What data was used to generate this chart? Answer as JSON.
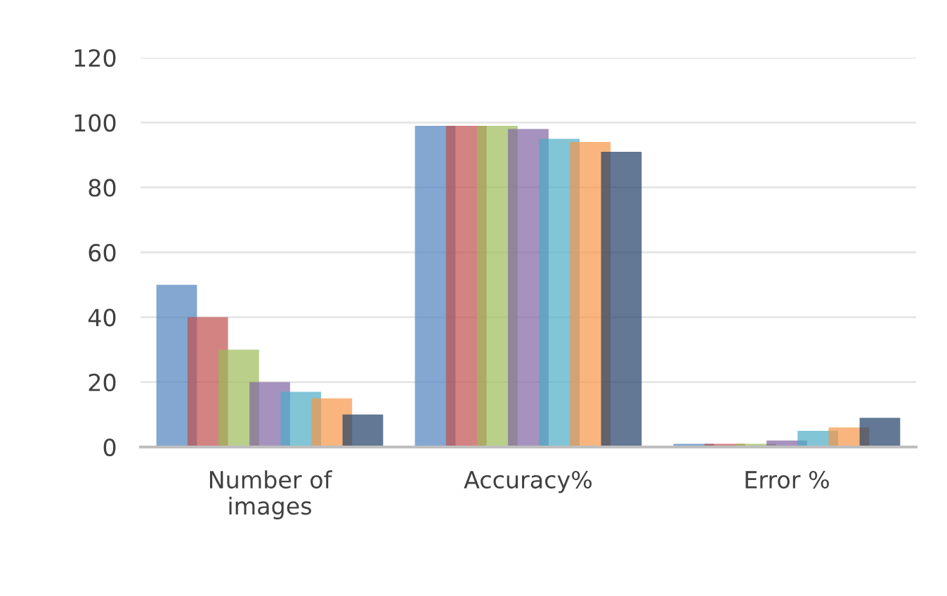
{
  "chart_data": {
    "type": "bar",
    "categories": [
      "Number of\nimages",
      "Accuracy%",
      "Error %"
    ],
    "series": [
      {
        "color": "#4f81bd",
        "values": [
          50,
          99,
          1
        ]
      },
      {
        "color": "#c0504d",
        "values": [
          40,
          99,
          1
        ]
      },
      {
        "color": "#9bbb59",
        "values": [
          30,
          99,
          1
        ]
      },
      {
        "color": "#8064a2",
        "values": [
          20,
          98,
          2
        ]
      },
      {
        "color": "#4bacc6",
        "values": [
          17,
          95,
          5
        ]
      },
      {
        "color": "#f79646",
        "values": [
          15,
          94,
          6
        ]
      },
      {
        "color": "#1f3f66",
        "values": [
          10,
          91,
          9
        ]
      }
    ],
    "ylim": [
      0,
      120
    ],
    "yticks": [
      0,
      20,
      40,
      60,
      80,
      100,
      120
    ],
    "grid": "y",
    "legend": false
  }
}
